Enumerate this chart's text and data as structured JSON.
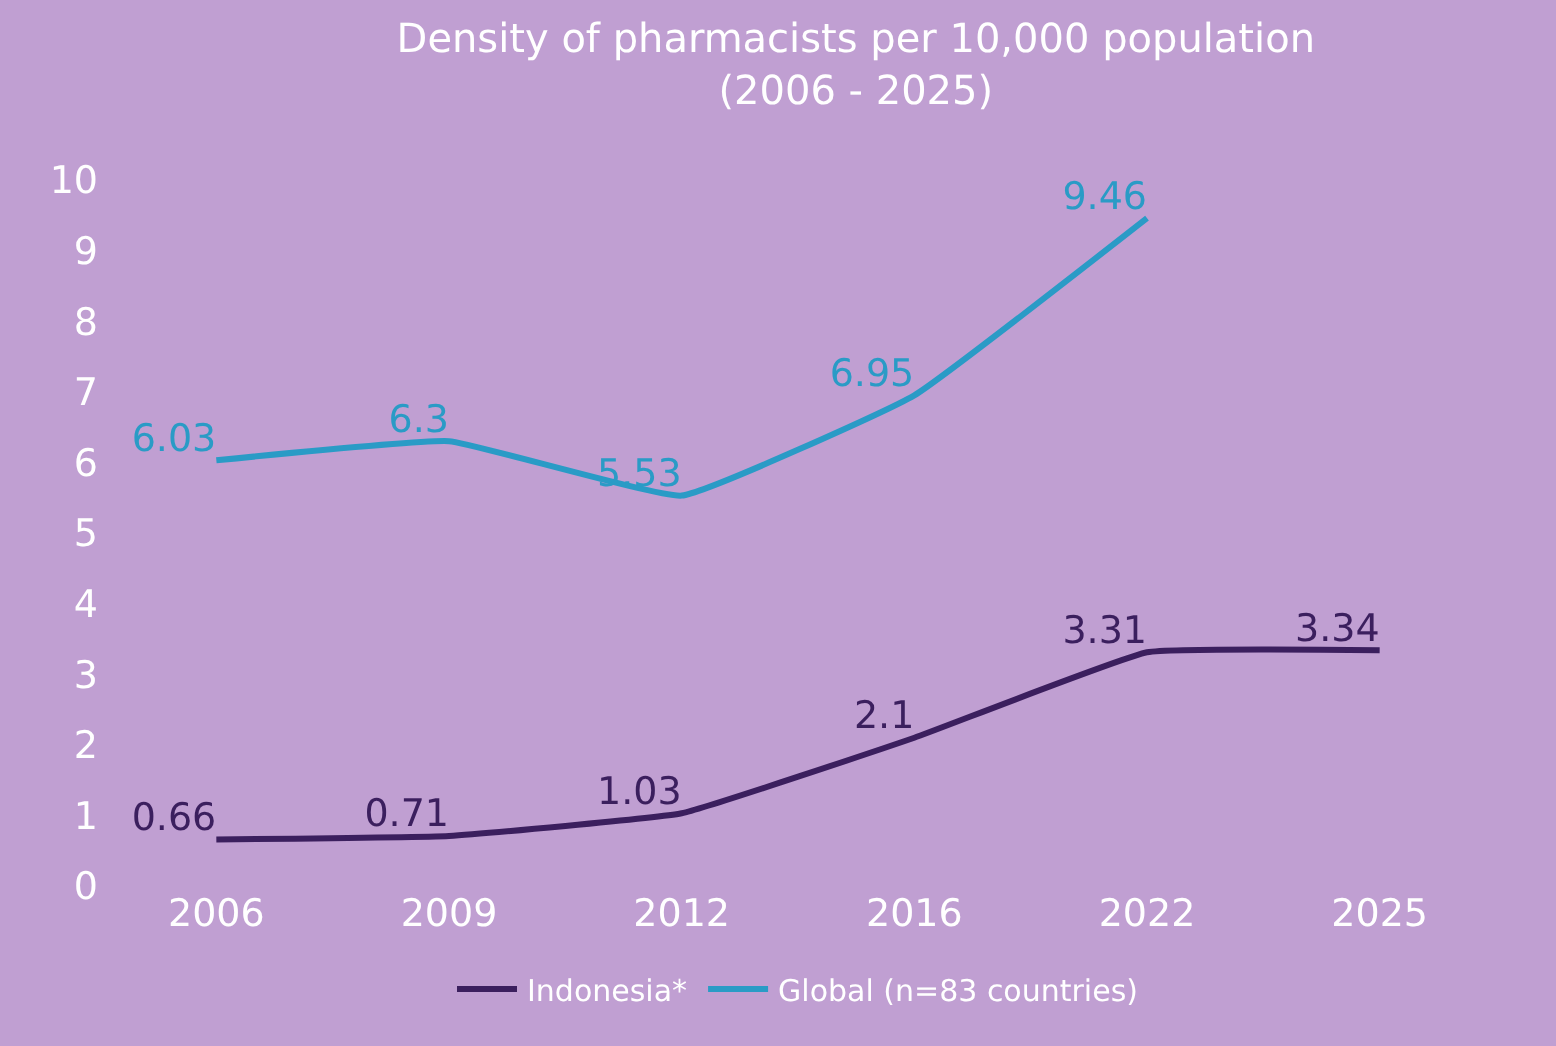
{
  "chart_data": {
    "type": "line",
    "title": "Density of pharmacists per 10,000 population\n(2006 - 2025)",
    "categories": [
      "2006",
      "2009",
      "2012",
      "2016",
      "2022",
      "2025"
    ],
    "series": [
      {
        "name": "Indonesia*",
        "color": "#3b1f5e",
        "values": [
          0.66,
          0.71,
          1.03,
          2.1,
          3.31,
          3.34
        ]
      },
      {
        "name": "Global (n=83 countries)",
        "color": "#2a9bc6",
        "values": [
          6.03,
          6.3,
          5.53,
          6.95,
          9.46,
          null
        ]
      }
    ],
    "ylim": [
      0,
      10
    ],
    "yticks": [
      0,
      1,
      2,
      3,
      4,
      5,
      6,
      7,
      8,
      9,
      10
    ],
    "grid": false,
    "legend": "bottom",
    "marker": "none",
    "line_style": "solid",
    "data_labels": true
  }
}
